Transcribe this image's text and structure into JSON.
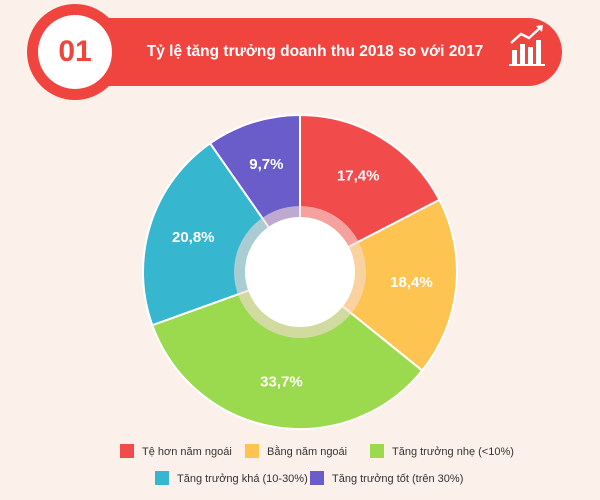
{
  "chart_data": {
    "type": "donut",
    "badge": "01",
    "title": "Tỷ lệ tăng trưởng doanh thu 2018 so với 2017",
    "categories": [
      "Tệ hơn năm ngoái",
      "Bằng năm ngoái",
      "Tăng trưởng nhẹ (<10%)",
      "Tăng trưởng khá (10-30%)",
      "Tăng trưởng tốt (trên 30%)"
    ],
    "values": [
      17.4,
      18.4,
      33.7,
      20.8,
      9.7
    ],
    "value_labels": [
      "17,4%",
      "18,4%",
      "33,7%",
      "20,8%",
      "9,7%"
    ],
    "colors": [
      "#f24b4b",
      "#fdc451",
      "#9bd94e",
      "#36b6cf",
      "#6a5cc9"
    ]
  }
}
